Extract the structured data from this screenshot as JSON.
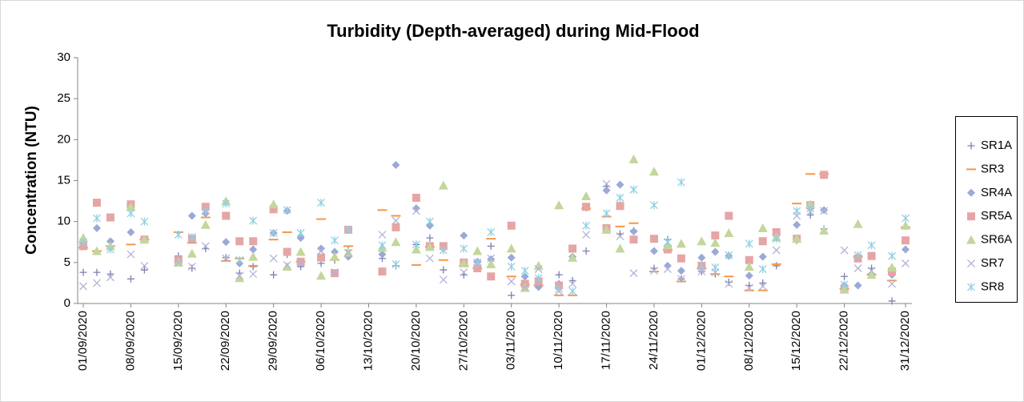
{
  "chart_data": {
    "type": "scatter",
    "title": "Turbidity (Depth-averaged) during Mid-Flood",
    "y_label": "Concentration (NTU)",
    "x": [
      "01/09/2020",
      "03/09/2020",
      "05/09/2020",
      "08/09/2020",
      "10/09/2020",
      "15/09/2020",
      "17/09/2020",
      "19/09/2020",
      "22/09/2020",
      "24/09/2020",
      "26/09/2020",
      "29/09/2020",
      "01/10/2020",
      "03/10/2020",
      "06/10/2020",
      "08/10/2020",
      "10/10/2020",
      "15/10/2020",
      "17/10/2020",
      "20/10/2020",
      "22/10/2020",
      "24/10/2020",
      "27/10/2020",
      "29/10/2020",
      "31/10/2020",
      "03/11/2020",
      "05/11/2020",
      "07/11/2020",
      "10/11/2020",
      "12/11/2020",
      "14/11/2020",
      "17/11/2020",
      "19/11/2020",
      "21/11/2020",
      "24/11/2020",
      "26/11/2020",
      "28/11/2020",
      "01/12/2020",
      "03/12/2020",
      "05/12/2020",
      "08/12/2020",
      "10/12/2020",
      "12/12/2020",
      "15/12/2020",
      "17/12/2020",
      "19/12/2020",
      "22/12/2020",
      "24/12/2020",
      "26/12/2020",
      "29/12/2020",
      "31/12/2020"
    ],
    "series": [
      {
        "name": "SR1A",
        "color": "#7f7fb2",
        "marker": "plus",
        "values": [
          3.8,
          3.8,
          3.6,
          3.0,
          4.1,
          5.8,
          4.3,
          6.7,
          5.6,
          3.7,
          4.5,
          3.5,
          6.0,
          4.5,
          4.9,
          5.3,
          6.5,
          5.5,
          4.6,
          7.2,
          8.0,
          4.1,
          3.5,
          5.0,
          7.0,
          1.0,
          2.8,
          2.3,
          3.5,
          2.8,
          6.4,
          14.3,
          8.5,
          8.9,
          4.3,
          7.8,
          3.0,
          3.9,
          3.6,
          2.6,
          2.2,
          2.5,
          4.6,
          7.7,
          10.8,
          9.1,
          3.3,
          5.6,
          4.3,
          0.3,
          null
        ]
      },
      {
        "name": "SR3",
        "color": "#f79646",
        "marker": "dash",
        "values": [
          6.8,
          6.4,
          7.0,
          7.2,
          7.8,
          8.7,
          7.4,
          10.5,
          5.2,
          5.5,
          4.6,
          7.8,
          8.7,
          5.1,
          10.3,
          5.3,
          7.0,
          11.4,
          10.7,
          4.7,
          6.9,
          5.3,
          4.6,
          4.3,
          7.9,
          3.3,
          2.3,
          2.2,
          1.0,
          1.0,
          11.6,
          10.6,
          9.4,
          9.8,
          3.9,
          6.5,
          2.7,
          4.3,
          3.6,
          3.3,
          1.6,
          1.6,
          4.8,
          12.2,
          15.8,
          15.8,
          1.8,
          5.7,
          3.5,
          2.8,
          9.3
        ]
      },
      {
        "name": "SR4A",
        "color": "#9aa9d6",
        "marker": "diamond",
        "values": [
          7.5,
          9.2,
          7.6,
          8.7,
          7.8,
          5.5,
          10.7,
          11.0,
          7.5,
          4.9,
          6.6,
          8.6,
          11.3,
          8.0,
          6.7,
          6.3,
          5.7,
          6.0,
          16.9,
          11.6,
          9.5,
          6.8,
          8.3,
          5.1,
          5.4,
          5.6,
          3.3,
          2.0,
          2.4,
          5.7,
          11.7,
          13.8,
          14.5,
          8.8,
          6.4,
          4.6,
          4.0,
          5.6,
          6.3,
          5.8,
          3.4,
          5.7,
          8.6,
          9.6,
          11.6,
          11.4,
          2.2,
          2.2,
          3.6,
          3.5,
          6.6
        ]
      },
      {
        "name": "SR5A",
        "color": "#e6a5a5",
        "marker": "square",
        "values": [
          7.0,
          12.3,
          10.5,
          12.1,
          7.8,
          5.3,
          7.9,
          11.8,
          10.7,
          7.6,
          7.6,
          11.5,
          6.3,
          5.1,
          5.6,
          3.7,
          9.0,
          3.9,
          9.3,
          12.9,
          7.0,
          7.0,
          5.0,
          4.3,
          3.3,
          9.5,
          2.4,
          2.7,
          2.2,
          6.7,
          11.8,
          9.2,
          11.9,
          7.8,
          7.9,
          6.6,
          5.5,
          4.6,
          8.3,
          10.7,
          5.3,
          7.6,
          8.7,
          7.9,
          12.0,
          15.7,
          1.8,
          5.5,
          5.8,
          3.9,
          7.7
        ]
      },
      {
        "name": "SR6A",
        "color": "#c3d69b",
        "marker": "triangle",
        "values": [
          8.0,
          6.4,
          7.0,
          11.8,
          7.8,
          5.0,
          6.1,
          9.6,
          12.5,
          3.1,
          5.7,
          12.1,
          4.5,
          6.3,
          3.4,
          5.7,
          6.2,
          6.8,
          7.5,
          6.6,
          6.9,
          14.4,
          4.9,
          6.4,
          4.8,
          6.7,
          1.9,
          4.6,
          12.0,
          5.6,
          13.1,
          9.0,
          6.7,
          17.6,
          16.1,
          7.1,
          7.3,
          7.6,
          7.4,
          8.6,
          4.5,
          9.2,
          8.1,
          7.9,
          12.1,
          8.9,
          1.7,
          9.7,
          3.5,
          4.4,
          9.5
        ]
      },
      {
        "name": "SR7",
        "color": "#b3b3d9",
        "marker": "cross",
        "values": [
          2.1,
          2.5,
          3.2,
          6.0,
          4.6,
          5.0,
          4.5,
          7.0,
          5.5,
          3.4,
          3.6,
          5.5,
          4.7,
          5.0,
          6.4,
          3.8,
          6.2,
          8.4,
          10.1,
          11.3,
          5.5,
          2.9,
          3.8,
          4.9,
          5.5,
          2.7,
          2.0,
          4.2,
          1.5,
          2.4,
          8.4,
          14.6,
          8.2,
          3.7,
          4.0,
          4.2,
          3.0,
          3.9,
          3.8,
          2.4,
          1.9,
          2.1,
          6.5,
          10.7,
          11.2,
          11.3,
          6.5,
          4.3,
          4.0,
          2.4,
          4.9
        ]
      },
      {
        "name": "SR8",
        "color": "#8fd0e3",
        "marker": "asterisk",
        "values": [
          7.5,
          10.4,
          6.6,
          11.0,
          10.0,
          8.4,
          8.1,
          11.3,
          12.2,
          5.3,
          10.1,
          8.6,
          11.4,
          8.6,
          12.3,
          7.7,
          9.0,
          7.1,
          4.8,
          7.2,
          10.0,
          6.5,
          6.7,
          5.0,
          8.7,
          4.5,
          4.0,
          3.1,
          1.8,
          1.5,
          9.5,
          11.0,
          12.9,
          13.9,
          12.0,
          7.5,
          14.8,
          4.5,
          4.4,
          5.9,
          7.3,
          4.2,
          7.9,
          11.3,
          11.6,
          null,
          2.3,
          5.9,
          7.1,
          5.8,
          10.4
        ]
      }
    ],
    "xlim": [
      "01/09/2020",
      "31/12/2020"
    ],
    "xticks": [
      "01/09/2020",
      "08/09/2020",
      "15/09/2020",
      "22/09/2020",
      "29/09/2020",
      "06/10/2020",
      "13/10/2020",
      "20/10/2020",
      "27/10/2020",
      "03/11/2020",
      "10/11/2020",
      "17/11/2020",
      "24/11/2020",
      "01/12/2020",
      "08/12/2020",
      "15/12/2020",
      "22/12/2020",
      "31/12/2020"
    ],
    "ylim": [
      0,
      30
    ],
    "yticks": [
      0,
      5,
      10,
      15,
      20,
      25,
      30
    ],
    "grid": false,
    "legend": "right"
  }
}
